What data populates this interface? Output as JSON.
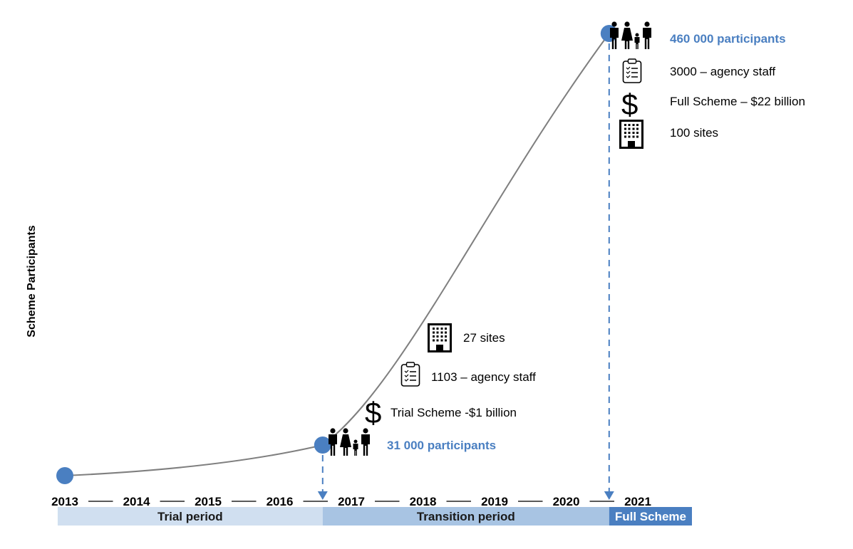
{
  "chart_data": {
    "type": "line",
    "ylabel": "Scheme Participants",
    "x": [
      "2013",
      "2014",
      "2015",
      "2016",
      "2017",
      "2018",
      "2019",
      "2020",
      "2021"
    ],
    "key_points": [
      {
        "year": 2013.0,
        "participants": 0
      },
      {
        "year": 2016.6,
        "participants": 31000
      },
      {
        "year": 2020.6,
        "participants": 460000
      }
    ],
    "periods": [
      {
        "label": "Trial period",
        "start": 2012.9,
        "end": 2016.6,
        "color": "#d0dff0",
        "text_color": "#1a1a1a"
      },
      {
        "label": "Transition period",
        "start": 2016.6,
        "end": 2020.6,
        "color": "#a8c4e3",
        "text_color": "#1a1a1a"
      },
      {
        "label": "Full Scheme",
        "start": 2020.6,
        "end": 2021.9,
        "color": "#4a7fc1",
        "text_color": "#ffffff"
      }
    ],
    "annotations": {
      "trial": {
        "participants": "31 000 participants",
        "funding": "Trial Scheme -$1 billion",
        "staff": "1103 – agency staff",
        "sites": "27 sites"
      },
      "full": {
        "participants": "460 000 participants",
        "staff": "3000 – agency staff",
        "funding": "Full Scheme – $22 billion",
        "sites": "100 sites"
      }
    },
    "icons": [
      "family-icon",
      "clipboard-icon",
      "dollar-icon",
      "building-icon"
    ],
    "colors": {
      "accent": "#4a7fc1",
      "curve": "#7f7f7f",
      "axis": "#595959",
      "text": "#000000"
    }
  }
}
